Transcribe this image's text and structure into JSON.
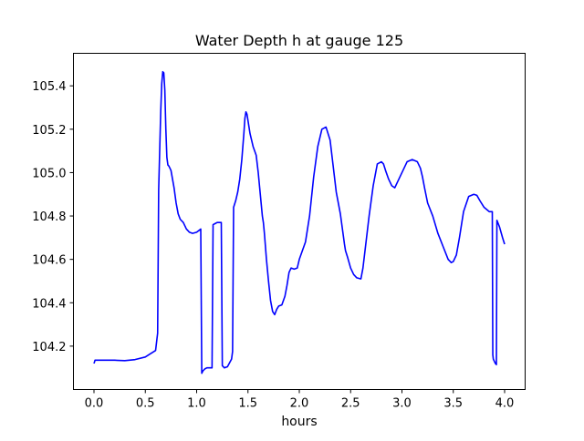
{
  "chart_data": {
    "type": "line",
    "title": "Water Depth h at gauge 125",
    "xlabel": "hours",
    "ylabel": "",
    "xlim": [
      -0.2,
      4.2
    ],
    "ylim": [
      104.0,
      105.55
    ],
    "xticks": [
      0.0,
      0.5,
      1.0,
      1.5,
      2.0,
      2.5,
      3.0,
      3.5,
      4.0
    ],
    "xtick_labels": [
      "0.0",
      "0.5",
      "1.0",
      "1.5",
      "2.0",
      "2.5",
      "3.0",
      "3.5",
      "4.0"
    ],
    "yticks": [
      104.2,
      104.4,
      104.6,
      104.8,
      105.0,
      105.2,
      105.4
    ],
    "ytick_labels": [
      "104.2",
      "104.4",
      "104.6",
      "104.8",
      "105.0",
      "105.2",
      "105.4"
    ],
    "grid": false,
    "series": [
      {
        "color": "#0000ff",
        "x": [
          0.0,
          0.01,
          0.1,
          0.2,
          0.3,
          0.4,
          0.5,
          0.55,
          0.6,
          0.62,
          0.63,
          0.64,
          0.65,
          0.66,
          0.67,
          0.68,
          0.69,
          0.7,
          0.71,
          0.72,
          0.73,
          0.75,
          0.78,
          0.8,
          0.82,
          0.84,
          0.87,
          0.9,
          0.93,
          0.96,
          1.0,
          1.04,
          1.05,
          1.06,
          1.08,
          1.1,
          1.15,
          1.16,
          1.18,
          1.2,
          1.24,
          1.25,
          1.27,
          1.3,
          1.34,
          1.35,
          1.36,
          1.38,
          1.4,
          1.42,
          1.44,
          1.46,
          1.47,
          1.48,
          1.49,
          1.5,
          1.52,
          1.55,
          1.58,
          1.6,
          1.62,
          1.64,
          1.65,
          1.66,
          1.68,
          1.7,
          1.72,
          1.74,
          1.76,
          1.78,
          1.8,
          1.83,
          1.86,
          1.88,
          1.9,
          1.92,
          1.95,
          1.98,
          2.0,
          2.03,
          2.06,
          2.1,
          2.14,
          2.18,
          2.22,
          2.26,
          2.3,
          2.34,
          2.36,
          2.4,
          2.44,
          2.45,
          2.47,
          2.5,
          2.53,
          2.56,
          2.6,
          2.62,
          2.65,
          2.68,
          2.72,
          2.76,
          2.8,
          2.82,
          2.84,
          2.87,
          2.9,
          2.93,
          2.96,
          3.0,
          3.05,
          3.1,
          3.15,
          3.18,
          3.2,
          3.22,
          3.25,
          3.3,
          3.35,
          3.4,
          3.45,
          3.48,
          3.5,
          3.53,
          3.56,
          3.6,
          3.65,
          3.7,
          3.73,
          3.76,
          3.8,
          3.85,
          3.88,
          3.885,
          3.89,
          3.91,
          3.92,
          3.925,
          3.95,
          3.98,
          4.0
        ],
        "y": [
          104.12,
          104.135,
          104.135,
          104.135,
          104.133,
          104.138,
          104.15,
          104.165,
          104.18,
          104.26,
          104.92,
          105.1,
          105.28,
          105.41,
          105.465,
          105.46,
          105.38,
          105.2,
          105.07,
          105.035,
          105.03,
          105.01,
          104.93,
          104.86,
          104.81,
          104.785,
          104.77,
          104.74,
          104.725,
          104.72,
          104.725,
          104.74,
          104.075,
          104.085,
          104.095,
          104.1,
          104.1,
          104.76,
          104.765,
          104.77,
          104.77,
          104.11,
          104.1,
          104.105,
          104.14,
          104.175,
          104.84,
          104.87,
          104.91,
          104.97,
          105.06,
          105.18,
          105.25,
          105.28,
          105.27,
          105.24,
          105.18,
          105.12,
          105.08,
          105.0,
          104.9,
          104.8,
          104.77,
          104.72,
          104.6,
          104.5,
          104.41,
          104.36,
          104.345,
          104.37,
          104.385,
          104.39,
          104.43,
          104.48,
          104.54,
          104.56,
          104.555,
          104.56,
          104.6,
          104.64,
          104.68,
          104.8,
          104.98,
          105.12,
          105.2,
          105.21,
          105.15,
          104.99,
          104.91,
          104.81,
          104.67,
          104.64,
          104.61,
          104.56,
          104.53,
          104.515,
          104.51,
          104.56,
          104.68,
          104.8,
          104.94,
          105.04,
          105.05,
          105.04,
          105.01,
          104.97,
          104.94,
          104.93,
          104.96,
          105.0,
          105.05,
          105.06,
          105.05,
          105.02,
          104.98,
          104.93,
          104.86,
          104.8,
          104.72,
          104.66,
          104.6,
          104.585,
          104.59,
          104.62,
          104.7,
          104.82,
          104.89,
          104.9,
          104.895,
          104.87,
          104.84,
          104.82,
          104.82,
          104.16,
          104.14,
          104.12,
          104.115,
          104.78,
          104.75,
          104.7,
          104.67
        ]
      }
    ]
  }
}
